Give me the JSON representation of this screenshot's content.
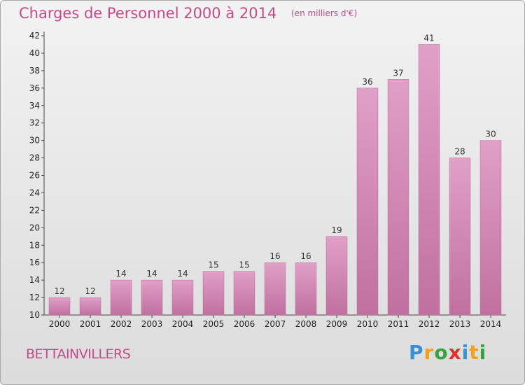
{
  "chart_data": {
    "type": "bar",
    "title": "Charges de Personnel 2000 à 2014",
    "subtitle": "(en milliers d'€)",
    "categories": [
      "2000",
      "2001",
      "2002",
      "2003",
      "2004",
      "2005",
      "2006",
      "2007",
      "2008",
      "2009",
      "2010",
      "2011",
      "2012",
      "2013",
      "2014"
    ],
    "values": [
      12,
      12,
      14,
      14,
      14,
      15,
      15,
      16,
      16,
      19,
      36,
      37,
      41,
      28,
      30
    ],
    "ylim": [
      10,
      42
    ],
    "yticks": [
      10,
      12,
      14,
      16,
      18,
      20,
      22,
      24,
      26,
      28,
      30,
      32,
      34,
      36,
      38,
      40,
      42
    ],
    "grid": false,
    "legend": "none",
    "bar_color": "#e0a0c8",
    "bar_color_dark": "#c0709f"
  },
  "footer": {
    "commune": "BETTAINVILLERS",
    "logo_letters": [
      {
        "ch": "P",
        "color": "#3a8fd0"
      },
      {
        "ch": "r",
        "color": "#f0a020"
      },
      {
        "ch": "o",
        "color": "#3aa040"
      },
      {
        "ch": "x",
        "color": "#e03030"
      },
      {
        "ch": "i",
        "color": "#3a8fd0"
      },
      {
        "ch": "t",
        "color": "#f0a020"
      },
      {
        "ch": "i",
        "color": "#3aa040"
      }
    ]
  }
}
